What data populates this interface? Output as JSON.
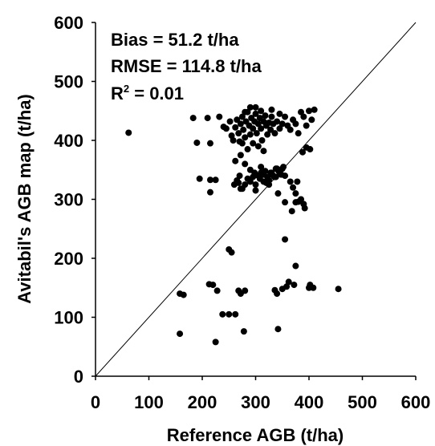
{
  "chart_data": {
    "type": "scatter",
    "title": "",
    "xlabel": "Reference AGB (t/ha)",
    "ylabel": "Avitabil's AGB map (t/ha)",
    "xlim": [
      0,
      600
    ],
    "ylim": [
      0,
      600
    ],
    "xticks": [
      "0",
      "100",
      "200",
      "300",
      "400",
      "500",
      "600"
    ],
    "yticks": [
      "0",
      "100",
      "200",
      "300",
      "400",
      "500",
      "600"
    ],
    "grid": false,
    "legend": "none",
    "reference_line": "1:1",
    "annotations": {
      "bias": "Bias = 51.2 t/ha",
      "rmse": "RMSE = 114.8 t/ha",
      "r2_base": "R",
      "r2_sup": "2",
      "r2_value": " = 0.01"
    },
    "point_color": "#000000",
    "points": [
      [
        62,
        413
      ],
      [
        183,
        438
      ],
      [
        190,
        396
      ],
      [
        210,
        438
      ],
      [
        215,
        395
      ],
      [
        195,
        335
      ],
      [
        215,
        312
      ],
      [
        225,
        333
      ],
      [
        215,
        333
      ],
      [
        232,
        440
      ],
      [
        240,
        423
      ],
      [
        245,
        420
      ],
      [
        252,
        432
      ],
      [
        255,
        408
      ],
      [
        258,
        400
      ],
      [
        262,
        422
      ],
      [
        265,
        435
      ],
      [
        268,
        412
      ],
      [
        270,
        398
      ],
      [
        272,
        428
      ],
      [
        275,
        440
      ],
      [
        277,
        418
      ],
      [
        280,
        405
      ],
      [
        282,
        432
      ],
      [
        285,
        448
      ],
      [
        288,
        425
      ],
      [
        290,
        410
      ],
      [
        292,
        438
      ],
      [
        295,
        420
      ],
      [
        298,
        432
      ],
      [
        300,
        445
      ],
      [
        302,
        412
      ],
      [
        305,
        428
      ],
      [
        308,
        438
      ],
      [
        310,
        420
      ],
      [
        312,
        400
      ],
      [
        315,
        432
      ],
      [
        318,
        442
      ],
      [
        320,
        425
      ],
      [
        322,
        410
      ],
      [
        325,
        430
      ],
      [
        328,
        418
      ],
      [
        330,
        440
      ],
      [
        333,
        428
      ],
      [
        336,
        412
      ],
      [
        340,
        432
      ],
      [
        345,
        420
      ],
      [
        350,
        428
      ],
      [
        355,
        440
      ],
      [
        360,
        425
      ],
      [
        365,
        418
      ],
      [
        370,
        435
      ],
      [
        375,
        428
      ],
      [
        380,
        412
      ],
      [
        385,
        448
      ],
      [
        390,
        440
      ],
      [
        395,
        425
      ],
      [
        400,
        450
      ],
      [
        405,
        435
      ],
      [
        410,
        452
      ],
      [
        388,
        380
      ],
      [
        395,
        388
      ],
      [
        402,
        385
      ],
      [
        300,
        456
      ],
      [
        290,
        456
      ],
      [
        310,
        450
      ],
      [
        330,
        452
      ],
      [
        280,
        448
      ],
      [
        345,
        445
      ],
      [
        275,
        395
      ],
      [
        295,
        395
      ],
      [
        285,
        385
      ],
      [
        305,
        390
      ],
      [
        315,
        382
      ],
      [
        272,
        375
      ],
      [
        262,
        365
      ],
      [
        280,
        360
      ],
      [
        290,
        350
      ],
      [
        298,
        345
      ],
      [
        305,
        340
      ],
      [
        310,
        355
      ],
      [
        318,
        348
      ],
      [
        322,
        338
      ],
      [
        328,
        345
      ],
      [
        333,
        340
      ],
      [
        338,
        352
      ],
      [
        343,
        348
      ],
      [
        348,
        342
      ],
      [
        352,
        355
      ],
      [
        290,
        330
      ],
      [
        295,
        338
      ],
      [
        300,
        325
      ],
      [
        308,
        335
      ],
      [
        315,
        342
      ],
      [
        320,
        328
      ],
      [
        325,
        332
      ],
      [
        330,
        345
      ],
      [
        335,
        338
      ],
      [
        340,
        352
      ],
      [
        265,
        332
      ],
      [
        270,
        340
      ],
      [
        275,
        318
      ],
      [
        280,
        325
      ],
      [
        285,
        335
      ],
      [
        338,
        338
      ],
      [
        345,
        345
      ],
      [
        350,
        352
      ],
      [
        355,
        340
      ],
      [
        365,
        330
      ],
      [
        370,
        320
      ],
      [
        375,
        310
      ],
      [
        378,
        330
      ],
      [
        385,
        300
      ],
      [
        390,
        292
      ],
      [
        392,
        285
      ],
      [
        380,
        296
      ],
      [
        375,
        295
      ],
      [
        368,
        280
      ],
      [
        355,
        295
      ],
      [
        310,
        345
      ],
      [
        315,
        330
      ],
      [
        300,
        315
      ],
      [
        272,
        318
      ],
      [
        268,
        328
      ],
      [
        260,
        325
      ],
      [
        325,
        325
      ],
      [
        342,
        310
      ],
      [
        250,
        215
      ],
      [
        255,
        210
      ],
      [
        355,
        232
      ],
      [
        375,
        187
      ],
      [
        158,
        140
      ],
      [
        165,
        138
      ],
      [
        213,
        156
      ],
      [
        220,
        155
      ],
      [
        228,
        145
      ],
      [
        238,
        105
      ],
      [
        250,
        105
      ],
      [
        262,
        105
      ],
      [
        268,
        145
      ],
      [
        272,
        140
      ],
      [
        280,
        145
      ],
      [
        158,
        72
      ],
      [
        225,
        58
      ],
      [
        278,
        76
      ],
      [
        342,
        80
      ],
      [
        336,
        146
      ],
      [
        340,
        140
      ],
      [
        350,
        148
      ],
      [
        358,
        152
      ],
      [
        362,
        160
      ],
      [
        372,
        155
      ],
      [
        400,
        150
      ],
      [
        402,
        155
      ],
      [
        408,
        150
      ],
      [
        455,
        148
      ]
    ]
  }
}
